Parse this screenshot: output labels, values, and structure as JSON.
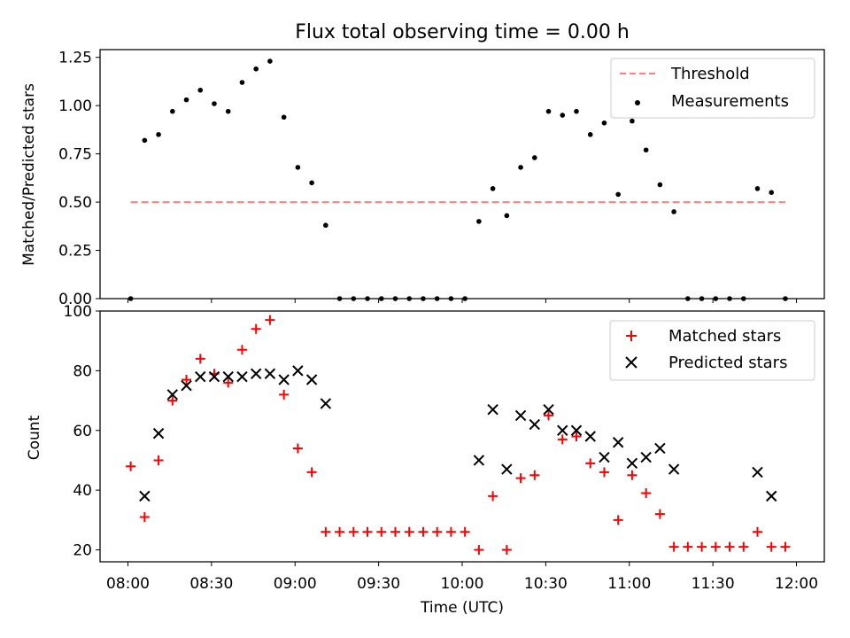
{
  "title": "Flux total observing time = 0.00 h",
  "xlabel": "Time (UTC)",
  "x_ticks": [
    "08:00",
    "08:30",
    "09:00",
    "09:30",
    "10:00",
    "10:30",
    "11:00",
    "11:30",
    "12:00"
  ],
  "x_tick_minutes": [
    480,
    510,
    540,
    570,
    600,
    630,
    660,
    690,
    720
  ],
  "xlim_minutes": [
    470,
    730
  ],
  "colors": {
    "threshold": "#ff7f7f",
    "measurements": "#000000",
    "matched": "#ff0000",
    "predicted": "#000000"
  },
  "chart_data": [
    {
      "type": "scatter",
      "ylabel": "Matched/Predicted stars",
      "ylim": [
        0,
        1.29
      ],
      "y_ticks": [
        0.0,
        0.25,
        0.5,
        0.75,
        1.0,
        1.25
      ],
      "y_tick_labels": [
        "0.00",
        "0.25",
        "0.50",
        "0.75",
        "1.00",
        "1.25"
      ],
      "legend": {
        "position": "upper right",
        "entries": [
          "Threshold",
          "Measurements"
        ]
      },
      "threshold": {
        "name": "Threshold",
        "value": 0.5,
        "x_range": [
          "08:01",
          "11:56"
        ],
        "style": "dashed"
      },
      "series": [
        {
          "name": "Measurements",
          "marker": "dot",
          "points": [
            [
              "08:01",
              0.0
            ],
            [
              "08:06",
              0.82
            ],
            [
              "08:11",
              0.85
            ],
            [
              "08:16",
              0.97
            ],
            [
              "08:21",
              1.03
            ],
            [
              "08:26",
              1.08
            ],
            [
              "08:31",
              1.01
            ],
            [
              "08:36",
              0.97
            ],
            [
              "08:41",
              1.12
            ],
            [
              "08:46",
              1.19
            ],
            [
              "08:51",
              1.23
            ],
            [
              "08:56",
              0.94
            ],
            [
              "09:01",
              0.68
            ],
            [
              "09:06",
              0.6
            ],
            [
              "09:11",
              0.38
            ],
            [
              "09:16",
              0.0
            ],
            [
              "09:21",
              0.0
            ],
            [
              "09:26",
              0.0
            ],
            [
              "09:31",
              0.0
            ],
            [
              "09:36",
              0.0
            ],
            [
              "09:41",
              0.0
            ],
            [
              "09:46",
              0.0
            ],
            [
              "09:51",
              0.0
            ],
            [
              "09:56",
              0.0
            ],
            [
              "10:01",
              0.0
            ],
            [
              "10:06",
              0.4
            ],
            [
              "10:11",
              0.57
            ],
            [
              "10:16",
              0.43
            ],
            [
              "10:21",
              0.68
            ],
            [
              "10:26",
              0.73
            ],
            [
              "10:31",
              0.97
            ],
            [
              "10:36",
              0.95
            ],
            [
              "10:41",
              0.97
            ],
            [
              "10:46",
              0.85
            ],
            [
              "10:51",
              0.91
            ],
            [
              "10:56",
              0.54
            ],
            [
              "11:01",
              0.92
            ],
            [
              "11:06",
              0.77
            ],
            [
              "11:11",
              0.59
            ],
            [
              "11:16",
              0.45
            ],
            [
              "11:21",
              0.0
            ],
            [
              "11:26",
              0.0
            ],
            [
              "11:31",
              0.0
            ],
            [
              "11:36",
              0.0
            ],
            [
              "11:41",
              0.0
            ],
            [
              "11:46",
              0.57
            ],
            [
              "11:51",
              0.55
            ],
            [
              "11:56",
              0.0
            ]
          ]
        }
      ]
    },
    {
      "type": "scatter",
      "ylabel": "Count",
      "ylim": [
        16,
        100
      ],
      "y_ticks": [
        20,
        40,
        60,
        80,
        100
      ],
      "y_tick_labels": [
        "20",
        "40",
        "60",
        "80",
        "100"
      ],
      "legend": {
        "position": "upper right",
        "entries": [
          "Matched stars",
          "Predicted stars"
        ]
      },
      "series": [
        {
          "name": "Matched stars",
          "marker": "plus",
          "points": [
            [
              "08:01",
              48
            ],
            [
              "08:06",
              31
            ],
            [
              "08:11",
              50
            ],
            [
              "08:16",
              70
            ],
            [
              "08:21",
              77
            ],
            [
              "08:26",
              84
            ],
            [
              "08:31",
              79
            ],
            [
              "08:36",
              76
            ],
            [
              "08:41",
              87
            ],
            [
              "08:46",
              94
            ],
            [
              "08:51",
              97
            ],
            [
              "08:56",
              72
            ],
            [
              "09:01",
              54
            ],
            [
              "09:06",
              46
            ],
            [
              "09:11",
              26
            ],
            [
              "09:16",
              26
            ],
            [
              "09:21",
              26
            ],
            [
              "09:26",
              26
            ],
            [
              "09:31",
              26
            ],
            [
              "09:36",
              26
            ],
            [
              "09:41",
              26
            ],
            [
              "09:46",
              26
            ],
            [
              "09:51",
              26
            ],
            [
              "09:56",
              26
            ],
            [
              "10:01",
              26
            ],
            [
              "10:06",
              20
            ],
            [
              "10:11",
              38
            ],
            [
              "10:16",
              20
            ],
            [
              "10:21",
              44
            ],
            [
              "10:26",
              45
            ],
            [
              "10:31",
              65
            ],
            [
              "10:36",
              57
            ],
            [
              "10:41",
              58
            ],
            [
              "10:46",
              49
            ],
            [
              "10:51",
              46
            ],
            [
              "10:56",
              30
            ],
            [
              "11:01",
              45
            ],
            [
              "11:06",
              39
            ],
            [
              "11:11",
              32
            ],
            [
              "11:16",
              21
            ],
            [
              "11:21",
              21
            ],
            [
              "11:26",
              21
            ],
            [
              "11:31",
              21
            ],
            [
              "11:36",
              21
            ],
            [
              "11:41",
              21
            ],
            [
              "11:46",
              26
            ],
            [
              "11:51",
              21
            ],
            [
              "11:56",
              21
            ]
          ]
        },
        {
          "name": "Predicted stars",
          "marker": "x",
          "points": [
            [
              "08:06",
              38
            ],
            [
              "08:11",
              59
            ],
            [
              "08:16",
              72
            ],
            [
              "08:21",
              75
            ],
            [
              "08:26",
              78
            ],
            [
              "08:31",
              78
            ],
            [
              "08:36",
              78
            ],
            [
              "08:41",
              78
            ],
            [
              "08:46",
              79
            ],
            [
              "08:51",
              79
            ],
            [
              "08:56",
              77
            ],
            [
              "09:01",
              80
            ],
            [
              "09:06",
              77
            ],
            [
              "09:11",
              69
            ],
            [
              "10:06",
              50
            ],
            [
              "10:11",
              67
            ],
            [
              "10:16",
              47
            ],
            [
              "10:21",
              65
            ],
            [
              "10:26",
              62
            ],
            [
              "10:31",
              67
            ],
            [
              "10:36",
              60
            ],
            [
              "10:41",
              60
            ],
            [
              "10:46",
              58
            ],
            [
              "10:51",
              51
            ],
            [
              "10:56",
              56
            ],
            [
              "11:01",
              49
            ],
            [
              "11:06",
              51
            ],
            [
              "11:11",
              54
            ],
            [
              "11:16",
              47
            ],
            [
              "11:46",
              46
            ],
            [
              "11:51",
              38
            ]
          ]
        }
      ]
    }
  ]
}
